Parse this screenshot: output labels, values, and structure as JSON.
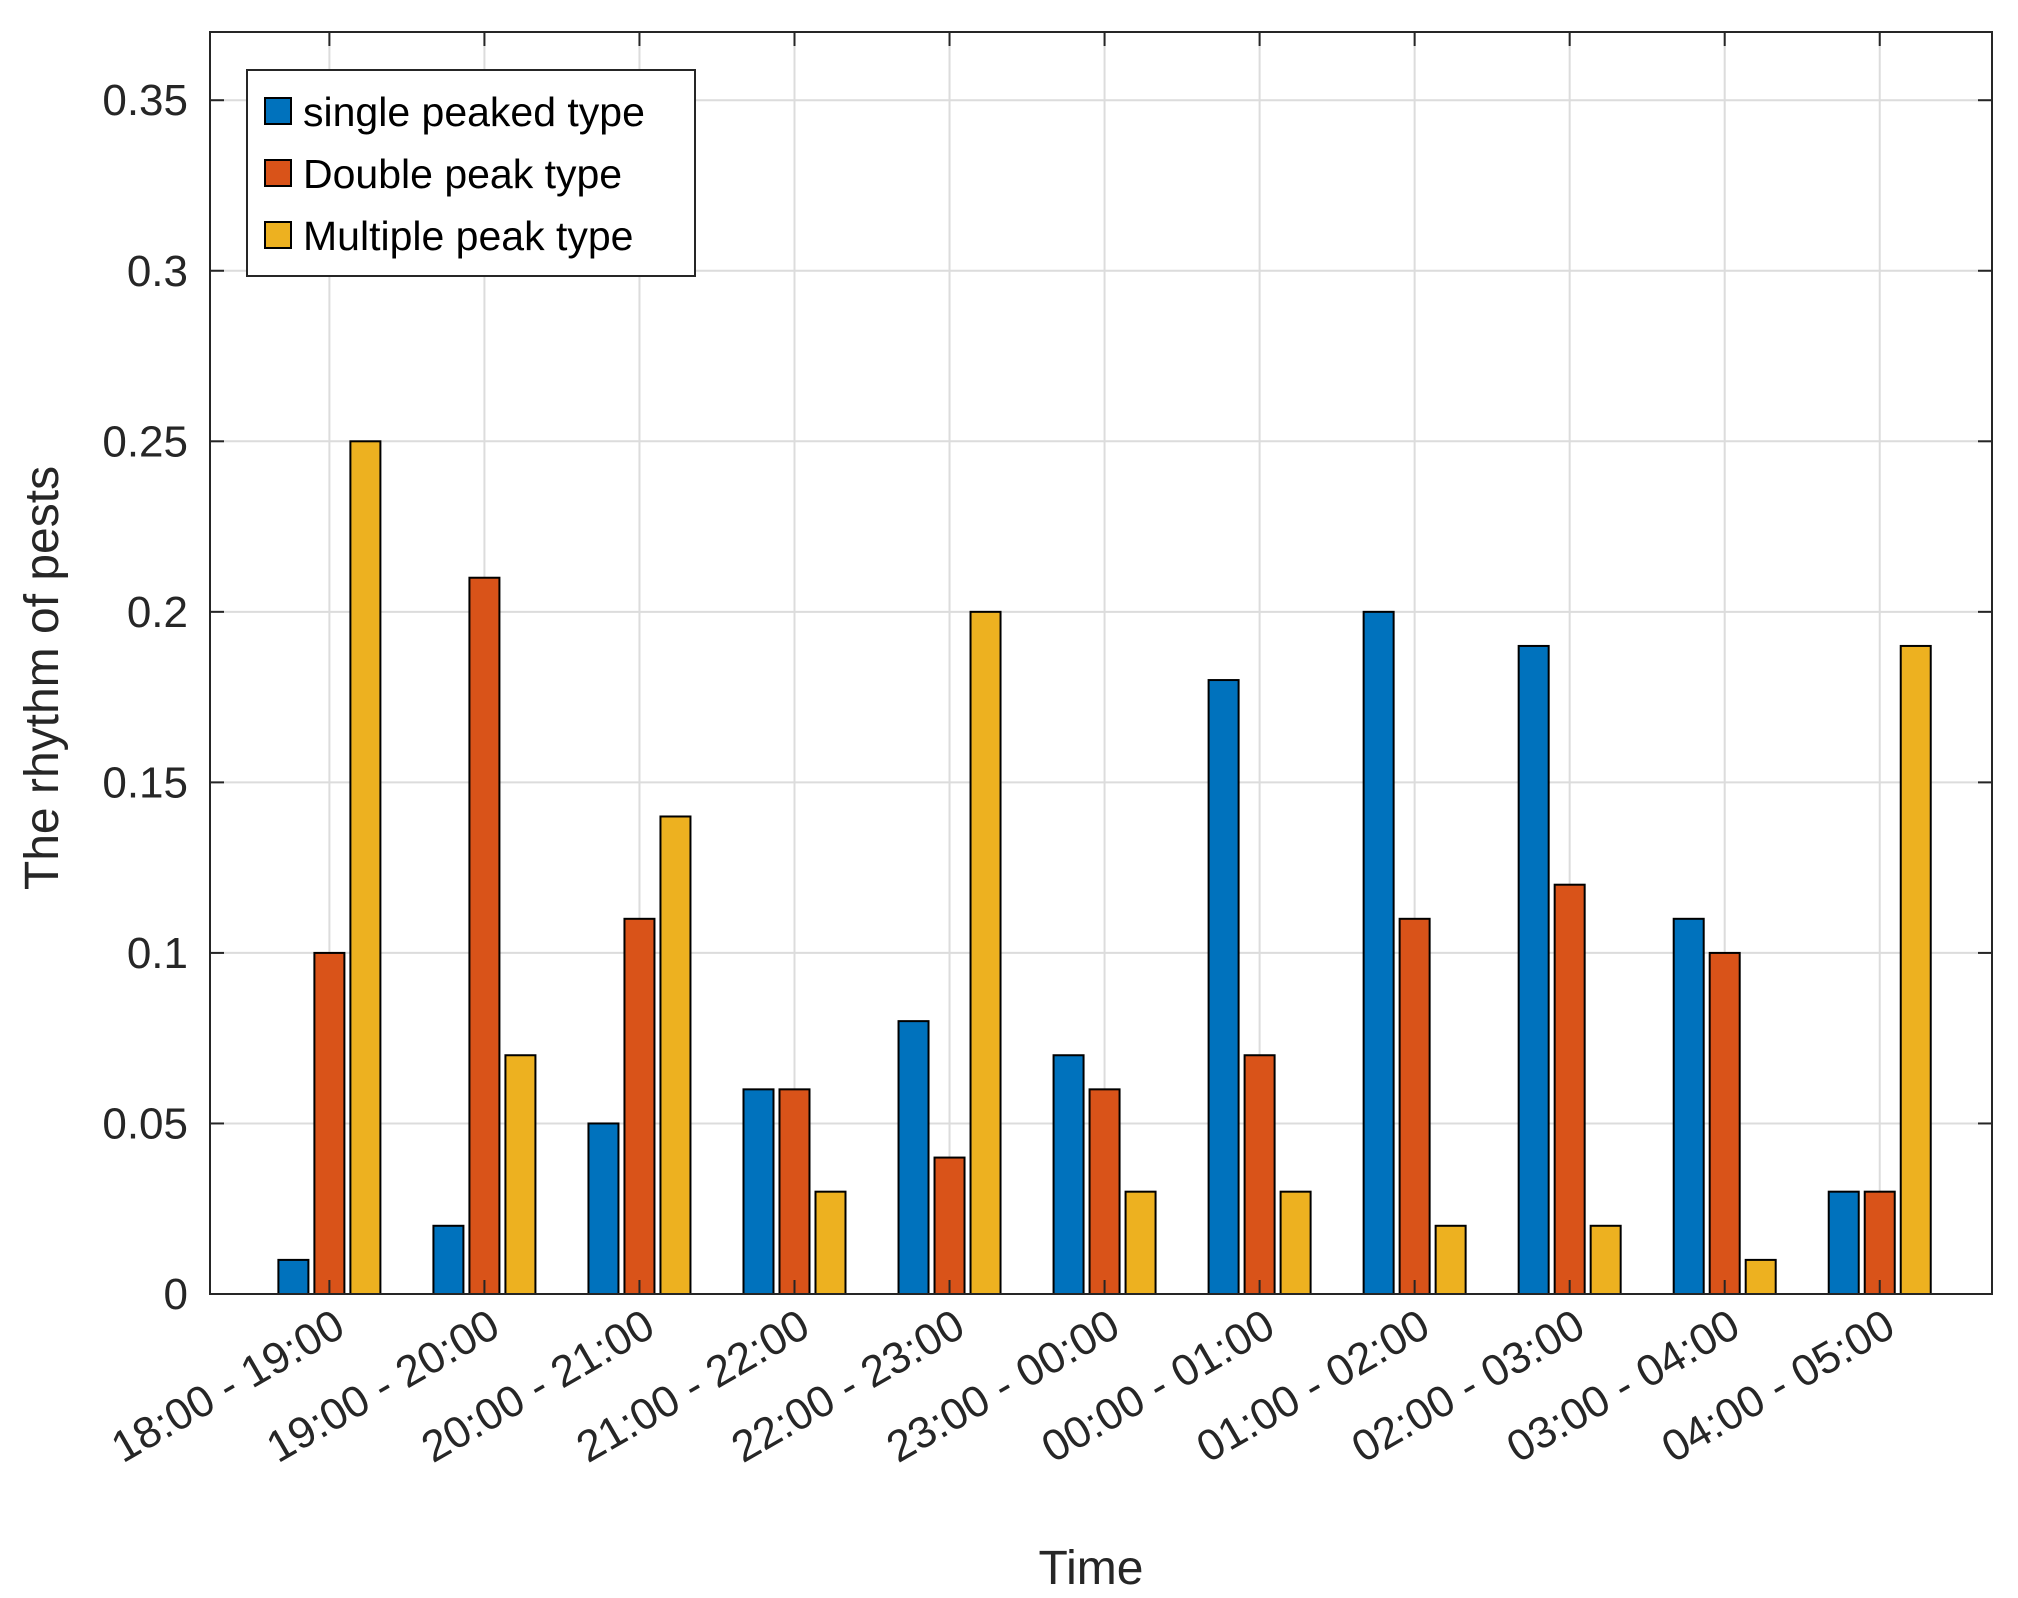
{
  "chart_data": {
    "type": "bar",
    "title": "",
    "xlabel": "Time",
    "ylabel": "The rhythm of pests",
    "ylim": [
      0,
      0.37
    ],
    "yticks": [
      0,
      0.05,
      0.1,
      0.15,
      0.2,
      0.25,
      0.3,
      0.35
    ],
    "ytick_labels": [
      "0",
      "0.05",
      "0.1",
      "0.15",
      "0.2",
      "0.25",
      "0.3",
      "0.35"
    ],
    "grid": true,
    "legend_position": "top-left",
    "categories": [
      "18:00 - 19:00",
      "19:00 - 20:00",
      "20:00 - 21:00",
      "21:00 - 22:00",
      "22:00 - 23:00",
      "23:00 - 00:00",
      "00:00 - 01:00",
      "01:00 - 02:00",
      "02:00 - 03:00",
      "03:00 - 04:00",
      "04:00 - 05:00"
    ],
    "series": [
      {
        "name": "single peaked type",
        "color": "#0072BD",
        "values": [
          0.01,
          0.02,
          0.05,
          0.06,
          0.08,
          0.07,
          0.18,
          0.2,
          0.19,
          0.11,
          0.03
        ]
      },
      {
        "name": "Double peak type",
        "color": "#D95319",
        "values": [
          0.1,
          0.21,
          0.11,
          0.06,
          0.04,
          0.06,
          0.07,
          0.11,
          0.12,
          0.1,
          0.03
        ]
      },
      {
        "name": "Multiple peak type",
        "color": "#EDB120",
        "values": [
          0.25,
          0.07,
          0.14,
          0.03,
          0.2,
          0.03,
          0.03,
          0.02,
          0.02,
          0.01,
          0.19
        ]
      }
    ]
  }
}
